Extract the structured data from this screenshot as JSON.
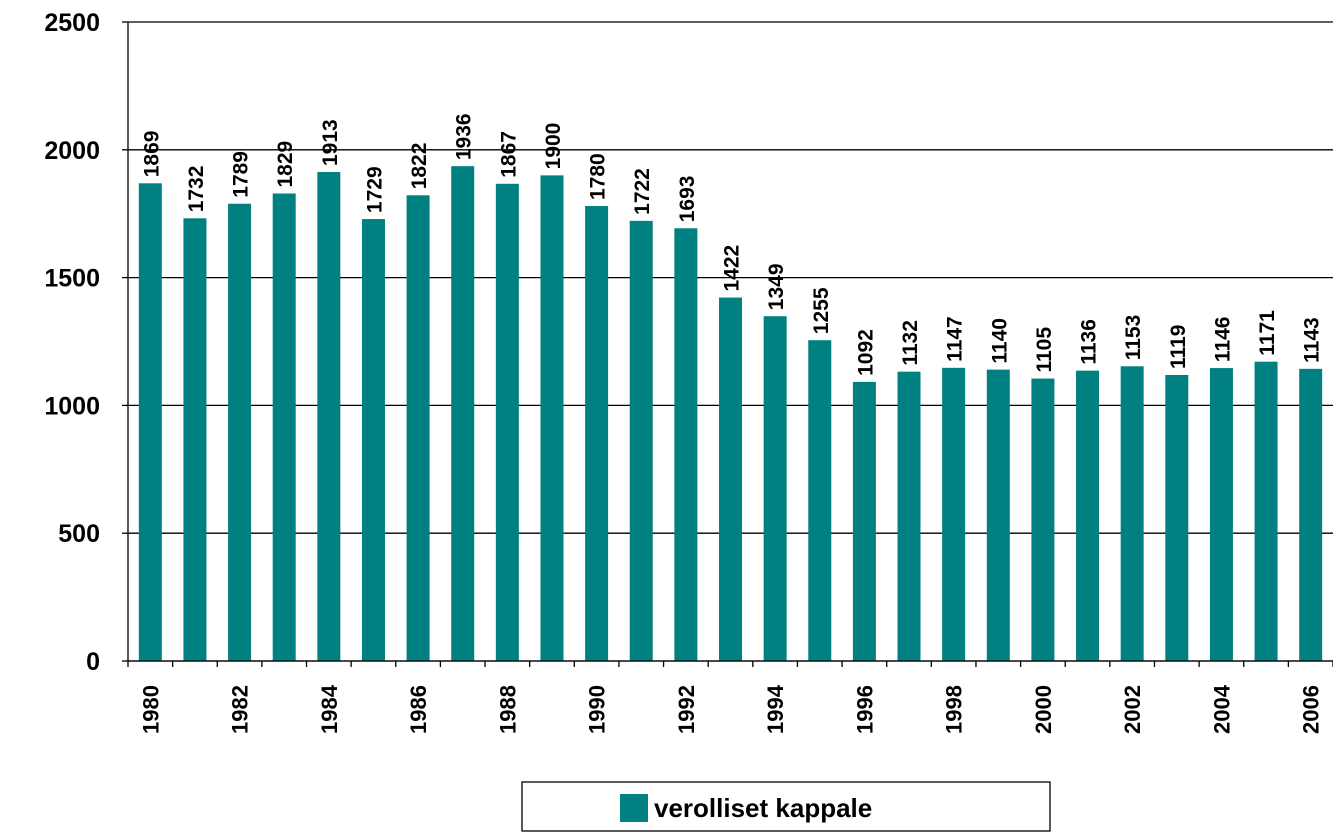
{
  "chart_data": {
    "type": "bar",
    "categories": [
      "1980",
      null,
      "1982",
      null,
      "1984",
      null,
      "1986",
      null,
      "1988",
      null,
      "1990",
      null,
      "1992",
      null,
      "1994",
      null,
      "1996",
      null,
      "1998",
      null,
      "2000",
      null,
      "2002",
      null,
      "2004",
      null,
      "2006"
    ],
    "series": [
      {
        "name": "verolliset kappale",
        "color": "#008080",
        "values": [
          1869,
          1732,
          1789,
          1829,
          1913,
          1729,
          1822,
          1936,
          1867,
          1900,
          1780,
          1722,
          1693,
          1422,
          1349,
          1255,
          1092,
          1132,
          1147,
          1140,
          1105,
          1136,
          1153,
          1119,
          1146,
          1171,
          1143
        ]
      }
    ],
    "ylim": [
      0,
      2500
    ],
    "yticks": [
      0,
      500,
      1000,
      1500,
      2000,
      2500
    ],
    "grid": true,
    "legend": "bottom"
  }
}
